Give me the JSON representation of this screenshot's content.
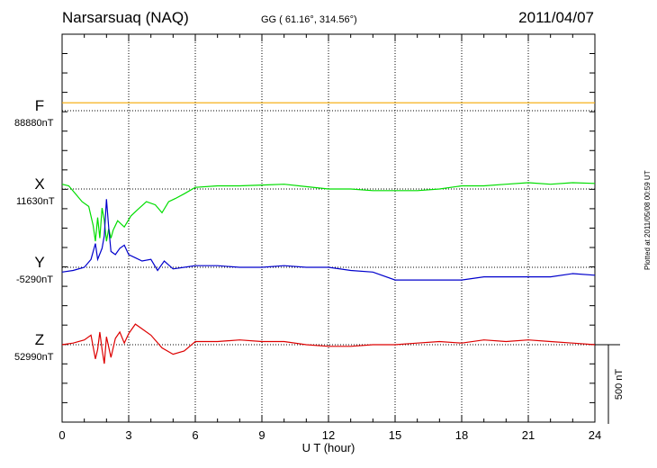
{
  "header": {
    "station": "Narsarsuaq (NAQ)",
    "coords": "GG ( 61.16°, 314.56°)",
    "date": "2011/04/07"
  },
  "footer": {
    "plotted": "Plotted at 2011/05/08 00:59 UT"
  },
  "chart_data": {
    "type": "line",
    "xlabel": "U T (hour)",
    "xlim": [
      0,
      24
    ],
    "xticks": [
      0,
      3,
      6,
      9,
      12,
      15,
      18,
      21,
      24
    ],
    "grid": true,
    "scale_bar": {
      "label": "500 nT",
      "value": 500
    },
    "series": [
      {
        "name": "F",
        "color": "#f5a800",
        "baseline_label": "88880nT",
        "x": [
          0,
          24
        ],
        "values": [
          50,
          50
        ]
      },
      {
        "name": "X",
        "color": "#00dd00",
        "baseline_label": "11630nT",
        "x": [
          0,
          0.3,
          0.6,
          0.9,
          1.2,
          1.4,
          1.5,
          1.6,
          1.7,
          1.8,
          1.9,
          2.0,
          2.1,
          2.2,
          2.3,
          2.5,
          2.8,
          3.1,
          3.4,
          3.8,
          4.2,
          4.5,
          4.8,
          5.1,
          5.5,
          6.0,
          7.0,
          8.0,
          9.0,
          10.0,
          11.0,
          12.0,
          13.0,
          14.0,
          15.0,
          16.0,
          17.0,
          18.0,
          19.0,
          20.0,
          21.0,
          22.0,
          23.0,
          24.0
        ],
        "values": [
          30,
          20,
          -30,
          -80,
          -110,
          -230,
          -330,
          -180,
          -310,
          -120,
          -200,
          -330,
          -250,
          -310,
          -260,
          -200,
          -240,
          -170,
          -130,
          -80,
          -100,
          -150,
          -80,
          -60,
          -30,
          10,
          20,
          20,
          25,
          30,
          15,
          0,
          0,
          -10,
          -10,
          -10,
          0,
          20,
          20,
          30,
          40,
          30,
          40,
          35
        ]
      },
      {
        "name": "Y",
        "color": "#0000cc",
        "baseline_label": "-5290nT",
        "x": [
          0,
          0.5,
          1.0,
          1.3,
          1.5,
          1.6,
          1.8,
          1.9,
          2.0,
          2.1,
          2.2,
          2.4,
          2.6,
          2.8,
          3.0,
          3.3,
          3.6,
          4.0,
          4.3,
          4.6,
          5.0,
          5.5,
          6.0,
          7.0,
          8.0,
          9.0,
          10.0,
          11.0,
          12.0,
          13.0,
          14.0,
          15.0,
          16.0,
          17.0,
          18.0,
          19.0,
          20.0,
          21.0,
          22.0,
          23.0,
          24.0
        ],
        "values": [
          -30,
          -20,
          0,
          50,
          150,
          50,
          120,
          200,
          430,
          250,
          100,
          80,
          120,
          140,
          80,
          60,
          40,
          50,
          -20,
          40,
          -10,
          0,
          10,
          10,
          0,
          0,
          10,
          0,
          0,
          -20,
          -30,
          -80,
          -80,
          -80,
          -80,
          -60,
          -60,
          -60,
          -60,
          -40,
          -50
        ]
      },
      {
        "name": "Z",
        "color": "#dd0000",
        "baseline_label": "52990nT",
        "x": [
          0,
          0.5,
          1.0,
          1.3,
          1.5,
          1.6,
          1.7,
          1.8,
          1.9,
          2.0,
          2.2,
          2.4,
          2.6,
          2.8,
          3.0,
          3.3,
          3.6,
          4.0,
          4.5,
          5.0,
          5.5,
          6.0,
          7.0,
          8.0,
          9.0,
          10.0,
          11.0,
          12.0,
          13.0,
          14.0,
          15.0,
          16.0,
          17.0,
          18.0,
          19.0,
          20.0,
          21.0,
          22.0,
          23.0,
          24.0
        ],
        "values": [
          0,
          10,
          30,
          60,
          -90,
          -30,
          80,
          -30,
          -120,
          50,
          -80,
          40,
          80,
          10,
          70,
          130,
          100,
          60,
          -20,
          -60,
          -40,
          20,
          20,
          30,
          20,
          20,
          0,
          -10,
          -10,
          0,
          0,
          10,
          20,
          10,
          30,
          20,
          30,
          20,
          10,
          0
        ]
      }
    ]
  }
}
